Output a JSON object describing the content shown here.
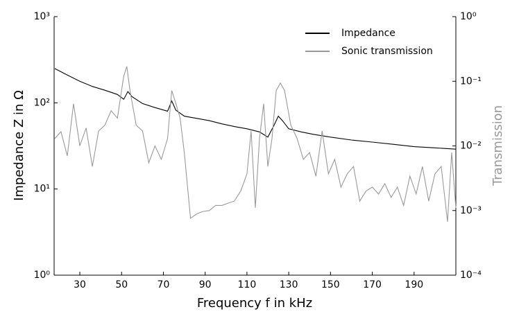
{
  "chart_data": {
    "type": "line",
    "xlabel": "Frequency f in kHz",
    "ylabel": "Impedance Z in Ω",
    "y2label": "Transmission",
    "xlim": [
      17.7,
      210
    ],
    "xticks": [
      30,
      50,
      70,
      90,
      110,
      130,
      150,
      170,
      190
    ],
    "ylim": [
      1,
      1000
    ],
    "ylog": true,
    "yticks": [
      {
        "value": 1,
        "label": "10⁰"
      },
      {
        "value": 10,
        "label": "10¹"
      },
      {
        "value": 100,
        "label": "10²"
      },
      {
        "value": 1000,
        "label": "10³"
      }
    ],
    "y2lim": [
      0.0001,
      1
    ],
    "y2log": true,
    "y2ticks": [
      {
        "value": 0.0001,
        "label": "10⁻⁴"
      },
      {
        "value": 0.001,
        "label": "10⁻³"
      },
      {
        "value": 0.01,
        "label": "10⁻²"
      },
      {
        "value": 0.1,
        "label": "10⁻¹"
      },
      {
        "value": 1,
        "label": "10⁰"
      }
    ],
    "grid": false,
    "legend": "upper right",
    "series": [
      {
        "name": "Impedance",
        "color": "#000000",
        "x": [
          18,
          24,
          30,
          36,
          42,
          48,
          51,
          53,
          55,
          60,
          66,
          72,
          74,
          76,
          80,
          86,
          92,
          98,
          104,
          110,
          116,
          120,
          123,
          125,
          127,
          130,
          136,
          142,
          150,
          160,
          170,
          180,
          190,
          200,
          210
        ],
        "values": [
          250,
          210,
          178,
          155,
          140,
          125,
          110,
          135,
          118,
          98,
          88,
          80,
          105,
          82,
          70,
          66,
          62,
          57,
          53,
          50,
          46,
          40,
          55,
          70,
          62,
          50,
          46,
          43,
          40,
          37,
          35,
          33,
          31,
          30,
          29
        ]
      },
      {
        "name": "Sonic transmission",
        "color": "#999999",
        "axis": "y2",
        "x": [
          18,
          21,
          24,
          27,
          30,
          33,
          36,
          39,
          42,
          45,
          48,
          51,
          52.5,
          54,
          57,
          60,
          63,
          66,
          69,
          72,
          74,
          76,
          78,
          80,
          83,
          86,
          89,
          92,
          95,
          98,
          101,
          104,
          107,
          110,
          112,
          114,
          116,
          118,
          120,
          122,
          124,
          126,
          128,
          131,
          134,
          137,
          140,
          143,
          146,
          149,
          152,
          155,
          158,
          161,
          164,
          167,
          170,
          173,
          176,
          179,
          182,
          185,
          188,
          191,
          194,
          197,
          200,
          203,
          206,
          208,
          210
        ],
        "values": [
          0.013,
          0.0166,
          0.007,
          0.045,
          0.01,
          0.019,
          0.0048,
          0.017,
          0.021,
          0.035,
          0.027,
          0.12,
          0.17,
          0.072,
          0.021,
          0.017,
          0.0055,
          0.01,
          0.0062,
          0.013,
          0.072,
          0.045,
          0.027,
          0.0079,
          0.00076,
          0.00089,
          0.00097,
          0.001,
          0.0012,
          0.0012,
          0.0013,
          0.0014,
          0.002,
          0.0037,
          0.017,
          0.0011,
          0.013,
          0.045,
          0.0048,
          0.013,
          0.072,
          0.094,
          0.072,
          0.021,
          0.013,
          0.0062,
          0.0079,
          0.0034,
          0.017,
          0.0037,
          0.0062,
          0.0023,
          0.0037,
          0.0048,
          0.0014,
          0.002,
          0.0023,
          0.0018,
          0.0026,
          0.0016,
          0.0023,
          0.0012,
          0.0034,
          0.0018,
          0.0048,
          0.0014,
          0.0037,
          0.0048,
          0.00067,
          0.0079,
          0.0011
        ]
      }
    ]
  }
}
